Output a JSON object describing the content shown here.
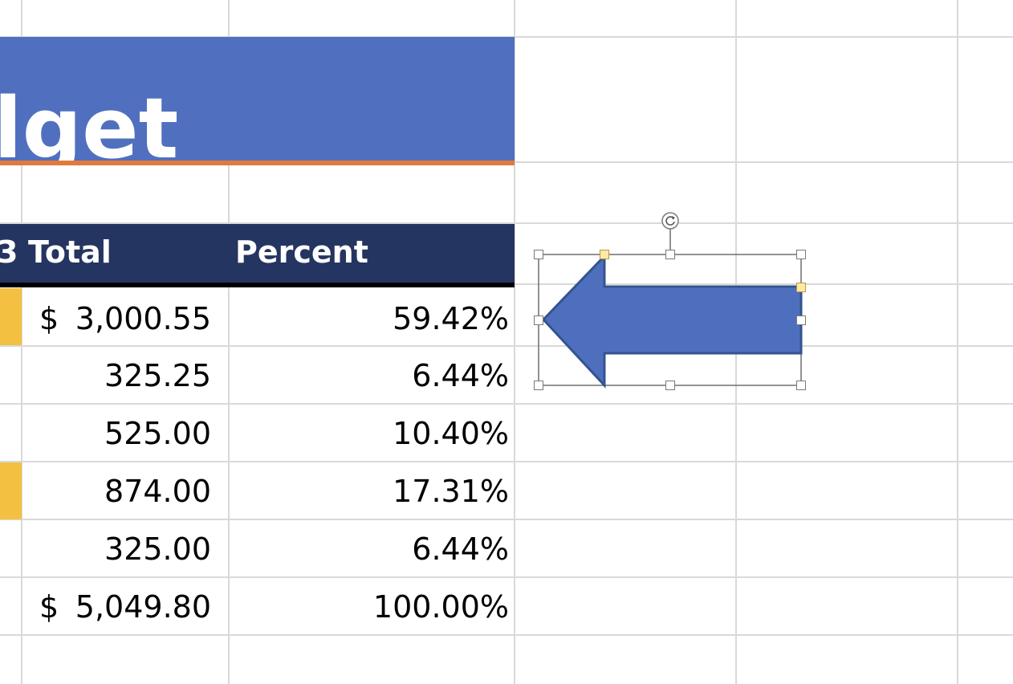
{
  "title": {
    "banner_text": "lget",
    "banner_color": "#5070bf",
    "underline_color": "#e07b3c"
  },
  "table": {
    "header_color": "#253561",
    "headers": {
      "partial": "3",
      "total": "Total",
      "percent": "Percent"
    },
    "rows": [
      {
        "left_fragment": ")",
        "currency": "$",
        "total": "3,000.55",
        "percent": "59.42%",
        "highlight": true
      },
      {
        "left_fragment": ")",
        "currency": "",
        "total": "325.25",
        "percent": "6.44%",
        "highlight": false
      },
      {
        "left_fragment": ")",
        "currency": "",
        "total": "525.00",
        "percent": "10.40%",
        "highlight": false
      },
      {
        "left_fragment": ")",
        "currency": "",
        "total": "874.00",
        "percent": "17.31%",
        "highlight": true
      },
      {
        "left_fragment": ")",
        "currency": "",
        "total": "325.00",
        "percent": "6.44%",
        "highlight": false
      },
      {
        "left_fragment": ")",
        "currency": "$",
        "total": "5,049.80",
        "percent": "100.00%",
        "highlight": false
      }
    ],
    "highlight_color": "#f4c042"
  },
  "shape": {
    "type": "left-arrow",
    "fill": "#4e6fbe",
    "stroke": "#34538f",
    "selected": true,
    "rotate_icon": "rotate-icon"
  }
}
